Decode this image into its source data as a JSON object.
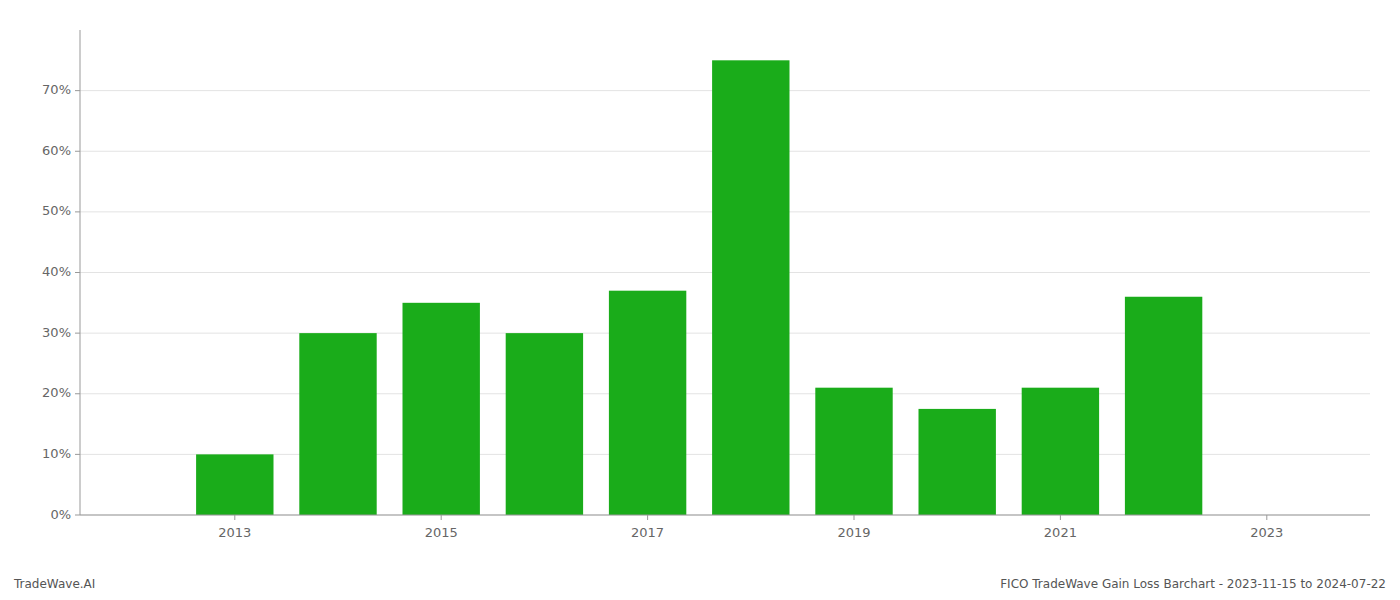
{
  "chart_data": {
    "type": "bar",
    "title": "FICO TradeWave Gain Loss Barchart - 2023-11-15 to 2024-07-22",
    "annotations": [
      "TradeWave.AI"
    ],
    "x": [
      2013,
      2014,
      2015,
      2016,
      2017,
      2018,
      2019,
      2020,
      2021,
      2022
    ],
    "values": [
      0.1,
      0.3,
      0.35,
      0.3,
      0.37,
      0.75,
      0.21,
      0.175,
      0.21,
      0.36
    ],
    "color": "#1aac1a",
    "xlim": [
      2011.5,
      2024.0
    ],
    "xticks": [
      2013,
      2015,
      2017,
      2019,
      2021,
      2023
    ],
    "ylim": [
      0,
      0.8
    ],
    "yticks": [
      {
        "value": 0.0,
        "label": "0%"
      },
      {
        "value": 0.1,
        "label": "10%"
      },
      {
        "value": 0.2,
        "label": "20%"
      },
      {
        "value": 0.3,
        "label": "30%"
      },
      {
        "value": 0.4,
        "label": "40%"
      },
      {
        "value": 0.5,
        "label": "50%"
      },
      {
        "value": 0.6,
        "label": "60%"
      },
      {
        "value": 0.7,
        "label": "70%"
      }
    ],
    "grid": true
  }
}
